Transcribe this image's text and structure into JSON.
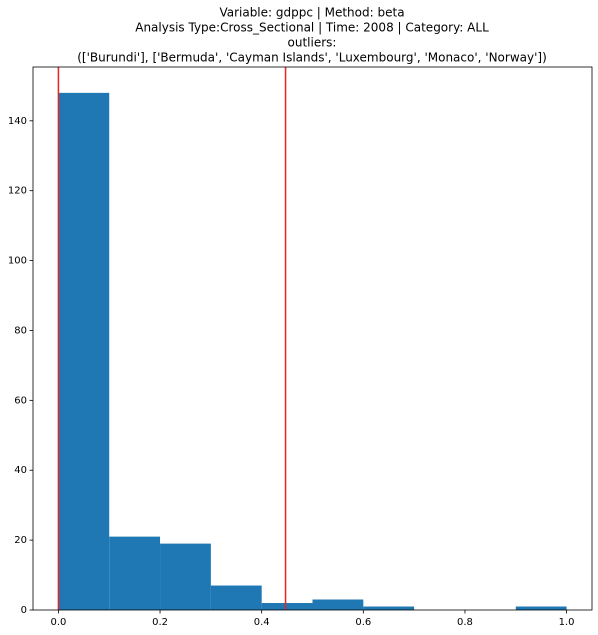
{
  "chart_data": {
    "type": "histogram",
    "title": [
      "Variable: gdppc | Method: beta",
      "Analysis Type:Cross_Sectional | Time: 2008 | Category: ALL",
      "outliers:",
      "(['Burundi'], ['Bermuda', 'Cayman Islands', 'Luxembourg', 'Monaco', 'Norway'])"
    ],
    "bins": [
      0,
      0.1,
      0.2,
      0.3,
      0.4,
      0.5,
      0.6,
      0.7,
      0.8,
      0.9,
      1.0
    ],
    "values": [
      148,
      21,
      19,
      7,
      2,
      3,
      1,
      0,
      0,
      1
    ],
    "color": "#1f77b4",
    "vlines": [
      0,
      0.447
    ],
    "vline_color": "#e8241c",
    "xlim": [
      -0.05,
      1.05
    ],
    "xticks": [
      {
        "value": 0,
        "label": "0.0"
      },
      {
        "value": 0.2,
        "label": "0.2"
      },
      {
        "value": 0.4,
        "label": "0.4"
      },
      {
        "value": 0.6,
        "label": "0.6"
      },
      {
        "value": 0.8,
        "label": "0.8"
      },
      {
        "value": 1.0,
        "label": "1.0"
      }
    ],
    "ylim": [
      0,
      155.4
    ],
    "yticks": [
      0,
      20,
      40,
      60,
      80,
      100,
      120,
      140
    ],
    "grid": false
  }
}
